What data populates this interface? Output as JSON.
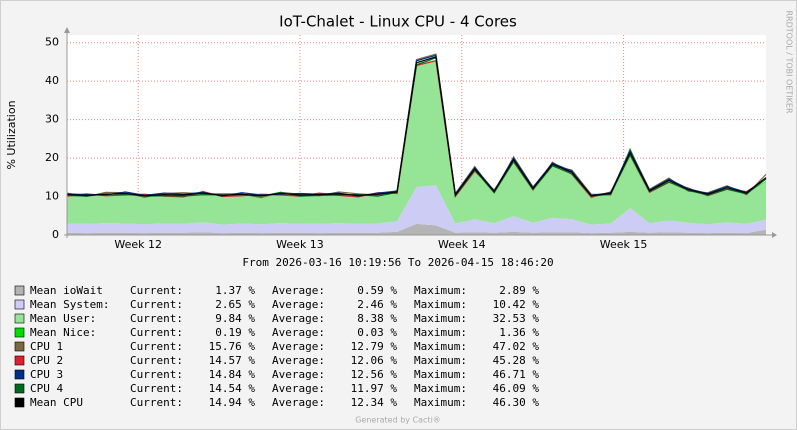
{
  "chart_data": {
    "type": "stacked-area-line",
    "title": "IoT-Chalet - Linux CPU - 4 Cores",
    "y_label": "% Utilization",
    "side_note": "RRDTOOL / TOBI OETIKER",
    "range_text": "From 2026-03-16 10:19:56 To 2026-04-15 18:46:20",
    "footer": "Generated by Cacti®",
    "stat_labels": [
      "Current:",
      "Average:",
      "Maximum:"
    ],
    "xlim": [
      11.56,
      15.88
    ],
    "xticks": [
      {
        "value": 12,
        "label": "Week 12"
      },
      {
        "value": 13,
        "label": "Week 13"
      },
      {
        "value": 14,
        "label": "Week 14"
      },
      {
        "value": 15,
        "label": "Week 15"
      }
    ],
    "ylim": [
      0,
      52
    ],
    "yticks": [
      0,
      10,
      20,
      30,
      40,
      50
    ],
    "grid": true,
    "x": [
      11.56,
      11.68,
      11.8,
      11.92,
      12.04,
      12.16,
      12.28,
      12.4,
      12.52,
      12.64,
      12.76,
      12.88,
      13,
      13.12,
      13.24,
      13.36,
      13.48,
      13.6,
      13.72,
      13.84,
      13.96,
      14.08,
      14.2,
      14.32,
      14.44,
      14.56,
      14.68,
      14.8,
      14.92,
      15.04,
      15.16,
      15.28,
      15.4,
      15.52,
      15.64,
      15.76,
      15.88
    ],
    "series": [
      {
        "name": "Mean ioWait",
        "kind": "area",
        "color": "#b4b4b4",
        "stats": [
          "1.37 %",
          "0.59 %",
          "2.89 %"
        ],
        "values": [
          0.6,
          0.5,
          0.6,
          0.6,
          0.5,
          0.6,
          0.6,
          0.7,
          0.5,
          0.6,
          0.5,
          0.6,
          0.6,
          0.5,
          0.6,
          0.6,
          0.6,
          0.8,
          2.89,
          2.5,
          0.6,
          0.7,
          0.6,
          0.8,
          0.6,
          0.7,
          0.7,
          0.5,
          0.6,
          0.8,
          0.6,
          0.7,
          0.6,
          0.5,
          0.6,
          0.5,
          1.37
        ]
      },
      {
        "name": "Mean System:",
        "kind": "area",
        "color": "#ccccf4",
        "stats": [
          "2.65 %",
          "2.46 %",
          "10.42 %"
        ],
        "values": [
          2.3,
          2.4,
          2.5,
          2.4,
          2.3,
          2.4,
          2.3,
          2.6,
          2.2,
          2.4,
          2.3,
          2.5,
          2.3,
          2.4,
          2.5,
          2.3,
          2.4,
          2.8,
          9.6,
          10.42,
          2.4,
          3.4,
          2.5,
          4.1,
          2.6,
          3.8,
          3.4,
          2.2,
          2.4,
          6.2,
          2.5,
          3.1,
          2.6,
          2.3,
          2.7,
          2.4,
          2.65
        ]
      },
      {
        "name": "Mean User:",
        "kind": "area",
        "color": "#96e496",
        "stats": [
          "9.84 %",
          "8.38 %",
          "32.53 %"
        ],
        "values": [
          7.6,
          7.4,
          7.5,
          7.8,
          7.4,
          7.5,
          7.5,
          7.6,
          7.6,
          7.6,
          7.4,
          7.7,
          7.5,
          7.6,
          7.6,
          7.4,
          7.6,
          7.6,
          32.4,
          32.53,
          7.4,
          13.1,
          8.2,
          14.7,
          8.9,
          13.9,
          12.2,
          7.5,
          7.8,
          14.4,
          8.4,
          10.4,
          8.6,
          7.8,
          9.0,
          8.0,
          9.84
        ]
      },
      {
        "name": "Mean Nice:",
        "kind": "area",
        "color": "#00e000",
        "stats": [
          "0.19 %",
          "0.03 %",
          "1.36 %"
        ],
        "values": [
          0.02,
          0.02,
          0.02,
          0.02,
          0.02,
          0.02,
          0.02,
          0.02,
          0.02,
          0.02,
          0.02,
          0.02,
          0.02,
          0.02,
          0.02,
          0.02,
          0.02,
          0.02,
          0.02,
          0.02,
          0.02,
          0.02,
          0.02,
          0.02,
          0.02,
          0.02,
          0.02,
          0.02,
          0.02,
          1.36,
          0.02,
          0.02,
          0.02,
          0.02,
          0.02,
          0.02,
          0.19
        ]
      },
      {
        "name": "CPU 1",
        "kind": "line",
        "color": "#7a6a40",
        "stats": [
          "15.76 %",
          "12.79 %",
          "47.02 %"
        ],
        "values": [
          10.9,
          10.0,
          11.1,
          11.0,
          9.8,
          10.8,
          11.0,
          10.7,
          10.7,
          10.7,
          9.7,
          11.1,
          10.6,
          10.2,
          11.2,
          10.7,
          10.4,
          11.5,
          45.6,
          47.02,
          10.8,
          17.8,
          11.0,
          20.3,
          12.5,
          18.0,
          16.9,
          10.6,
          10.4,
          22.1,
          11.9,
          14.8,
          11.4,
          11.0,
          12.8,
          10.5,
          15.76
        ]
      },
      {
        "name": "CPU 2",
        "kind": "line",
        "color": "#e02030",
        "stats": [
          "14.57 %",
          "12.06 %",
          "45.28 %"
        ],
        "values": [
          10.1,
          10.7,
          10.2,
          10.4,
          10.6,
          10.1,
          9.9,
          11.3,
          10.0,
          10.2,
          10.6,
          10.4,
          10.1,
          10.9,
          10.3,
          9.9,
          11.0,
          10.8,
          44.1,
          45.28,
          10.0,
          16.6,
          11.7,
          19.0,
          11.7,
          18.9,
          15.8,
          9.8,
          11.2,
          20.8,
          11.1,
          13.7,
          12.2,
          10.2,
          11.9,
          11.3,
          14.57
        ]
      },
      {
        "name": "CPU 3",
        "kind": "line",
        "color": "#00308a",
        "stats": [
          "14.84 %",
          "12.56 %",
          "46.71 %"
        ],
        "values": [
          10.7,
          10.5,
          10.4,
          11.2,
          10.3,
          10.9,
          10.6,
          11.1,
          10.1,
          11.0,
          10.4,
          10.6,
          10.8,
          10.6,
          10.9,
          10.1,
          10.9,
          11.4,
          45.3,
          46.71,
          10.6,
          17.5,
          11.5,
          20.0,
          12.4,
          18.7,
          16.6,
          10.3,
          11.0,
          21.9,
          11.7,
          14.5,
          12.0,
          10.8,
          12.6,
          11.1,
          14.84
        ]
      },
      {
        "name": "CPU 4",
        "kind": "line",
        "color": "#006a1e",
        "stats": [
          "14.54 %",
          "11.97 %",
          "46.09 %"
        ],
        "values": [
          10.3,
          10.1,
          10.7,
          10.6,
          10.1,
          10.2,
          10.1,
          10.5,
          10.4,
          10.5,
          10.1,
          11.1,
          10.1,
          10.3,
          10.4,
          10.5,
          10.1,
          11.1,
          44.2,
          46.09,
          10.2,
          16.9,
          11.0,
          19.1,
          11.8,
          18.0,
          15.9,
          10.1,
          10.6,
          20.8,
          11.3,
          13.8,
          11.6,
          10.4,
          11.9,
          10.7,
          14.54
        ]
      },
      {
        "name": "Mean CPU",
        "kind": "line",
        "color": "#000000",
        "stats": [
          "14.94 %",
          "12.34 %",
          "46.30 %"
        ],
        "values": [
          10.5,
          10.3,
          10.6,
          10.8,
          10.2,
          10.5,
          10.4,
          10.9,
          10.3,
          10.6,
          10.2,
          10.8,
          10.4,
          10.5,
          10.7,
          10.3,
          10.6,
          11.2,
          44.8,
          46.3,
          10.4,
          17.2,
          11.3,
          19.6,
          12.1,
          18.4,
          16.3,
          10.2,
          10.8,
          21.4,
          11.5,
          14.2,
          11.8,
          10.6,
          12.3,
          10.9,
          14.94
        ]
      }
    ]
  }
}
